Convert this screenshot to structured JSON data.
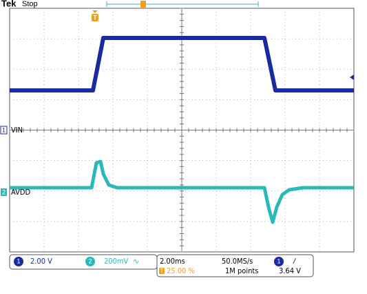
{
  "header": {
    "brand": "Tek",
    "status": "Stop"
  },
  "markers": {
    "trigger_position": "T",
    "channel1": "1",
    "channel2": "2"
  },
  "channel_labels": {
    "ch1": "VIN",
    "ch2": "AVDD"
  },
  "status_bar": {
    "ch1": {
      "number": "1",
      "scale": "2.00 V"
    },
    "ch2": {
      "number": "2",
      "scale": "200mV",
      "bandwidth": "∿"
    },
    "timebase": "2.00ms",
    "sample_rate": "50.0MS/s",
    "trigger_symbol": "T",
    "trigger_position": "25.00 %",
    "record_length": "1M points",
    "trigger_source": "1",
    "trigger_slope": "/",
    "trigger_level": "3.64 V"
  }
}
